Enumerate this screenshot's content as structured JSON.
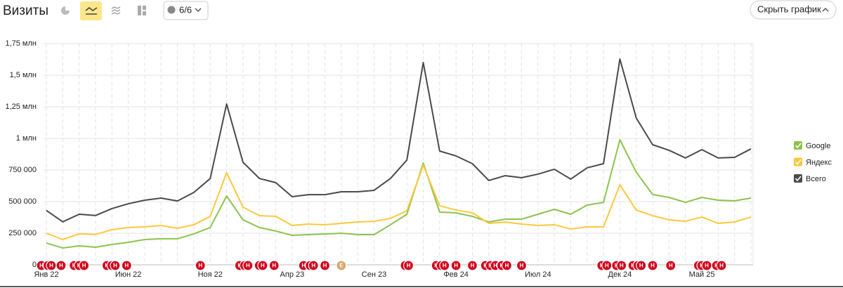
{
  "toolbar": {
    "counter": "6/6",
    "hide_button": "Скрыть график"
  },
  "chart_data": {
    "type": "line",
    "title": "Визиты",
    "categories": [
      "Янв 22",
      null,
      null,
      null,
      null,
      "Июн 22",
      null,
      null,
      null,
      null,
      "Ноя 22",
      null,
      null,
      null,
      null,
      "Апр 23",
      null,
      null,
      null,
      null,
      "Сен 23",
      null,
      null,
      null,
      null,
      "Фев 24",
      null,
      null,
      null,
      null,
      "Июл 24",
      null,
      null,
      null,
      null,
      "Дек 24",
      null,
      null,
      null,
      null,
      "Май 25",
      null,
      null,
      null
    ],
    "series": [
      {
        "name": "Google",
        "color": "#8cc34b",
        "values": [
          172000,
          133000,
          150000,
          139000,
          161000,
          178000,
          200000,
          206000,
          206000,
          245000,
          295000,
          544000,
          356000,
          295000,
          267000,
          233000,
          239000,
          244000,
          250000,
          239000,
          239000,
          317000,
          400000,
          806000,
          417000,
          411000,
          383000,
          339000,
          361000,
          361000,
          400000,
          439000,
          400000,
          472000,
          494000,
          989000,
          733000,
          556000,
          533000,
          494000,
          533000,
          511000,
          506000,
          528000
        ]
      },
      {
        "name": "Яндекс",
        "color": "#fdc83a",
        "values": [
          250000,
          200000,
          245000,
          240000,
          278000,
          295000,
          300000,
          311000,
          289000,
          317000,
          383000,
          728000,
          456000,
          389000,
          383000,
          311000,
          322000,
          317000,
          328000,
          339000,
          344000,
          367000,
          428000,
          789000,
          467000,
          433000,
          411000,
          328000,
          339000,
          322000,
          311000,
          317000,
          283000,
          300000,
          300000,
          633000,
          433000,
          389000,
          356000,
          344000,
          378000,
          328000,
          339000,
          378000
        ]
      },
      {
        "name": "Всего",
        "color": "#4a4a4a",
        "values": [
          430000,
          340000,
          400000,
          390000,
          445000,
          483000,
          511000,
          528000,
          505000,
          572000,
          683000,
          1272000,
          811000,
          683000,
          650000,
          539000,
          555000,
          555000,
          578000,
          578000,
          589000,
          683000,
          828000,
          1600000,
          900000,
          861000,
          800000,
          667000,
          705000,
          689000,
          717000,
          756000,
          678000,
          767000,
          800000,
          1628000,
          1161000,
          950000,
          906000,
          845000,
          911000,
          845000,
          850000,
          917000
        ]
      }
    ],
    "ylim": [
      0,
      1750000
    ],
    "yticks": [
      0,
      {
        "value": 250000,
        "label": "250 000"
      },
      {
        "value": 500000,
        "label": "500 000"
      },
      {
        "value": 750000,
        "label": "750 000"
      },
      {
        "value": 1000000,
        "label": "1 млн"
      },
      {
        "value": 1250000,
        "label": "1,25 млн"
      },
      {
        "value": 1500000,
        "label": "1,5 млн"
      },
      {
        "value": 1750000,
        "label": "1,75 млн"
      }
    ],
    "grid": true,
    "legend": "right",
    "annotations": [
      {
        "label": "Н",
        "x": -0.3,
        "color": "#d0021b"
      },
      {
        "label": "Н",
        "x": 0.1,
        "color": "#d0021b"
      },
      {
        "label": "Н",
        "x": 0.3,
        "color": "#d0021b"
      },
      {
        "label": "Н",
        "x": 0.9,
        "color": "#d0021b"
      },
      {
        "label": "Н",
        "x": 1.7,
        "color": "#d0021b"
      },
      {
        "label": "Н",
        "x": 2.0,
        "color": "#d0021b"
      },
      {
        "label": "Н",
        "x": 2.3,
        "color": "#d0021b"
      },
      {
        "label": "Н",
        "x": 3.7,
        "color": "#d0021b"
      },
      {
        "label": "Н",
        "x": 4.0,
        "color": "#d0021b"
      },
      {
        "label": "Н",
        "x": 4.2,
        "color": "#d0021b"
      },
      {
        "label": "Н",
        "x": 4.9,
        "color": "#d0021b"
      },
      {
        "label": "Н",
        "x": 9.4,
        "color": "#d0021b"
      },
      {
        "label": "Н",
        "x": 11.8,
        "color": "#d0021b"
      },
      {
        "label": "Н",
        "x": 12.1,
        "color": "#d0021b"
      },
      {
        "label": "Н",
        "x": 12.3,
        "color": "#d0021b"
      },
      {
        "label": "Н",
        "x": 13.0,
        "color": "#d0021b"
      },
      {
        "label": "Н",
        "x": 13.2,
        "color": "#d0021b"
      },
      {
        "label": "Н",
        "x": 13.9,
        "color": "#d0021b"
      },
      {
        "label": "Н",
        "x": 15.7,
        "color": "#d0021b"
      },
      {
        "label": "Н",
        "x": 16.1,
        "color": "#d0021b"
      },
      {
        "label": "Н",
        "x": 16.3,
        "color": "#d0021b"
      },
      {
        "label": "Н",
        "x": 17.0,
        "color": "#d0021b"
      },
      {
        "label": "Е",
        "x": 18.0,
        "color": "#d9a46b"
      },
      {
        "label": "Н",
        "x": 21.9,
        "color": "#d0021b"
      },
      {
        "label": "Н",
        "x": 22.1,
        "color": "#d0021b"
      },
      {
        "label": "Н",
        "x": 23.8,
        "color": "#d0021b"
      },
      {
        "label": "Н",
        "x": 24.1,
        "color": "#d0021b"
      },
      {
        "label": "Н",
        "x": 24.3,
        "color": "#d0021b"
      },
      {
        "label": "Н",
        "x": 25.0,
        "color": "#d0021b"
      },
      {
        "label": "Н",
        "x": 26.0,
        "color": "#d0021b"
      },
      {
        "label": "Н",
        "x": 26.8,
        "color": "#d0021b"
      },
      {
        "label": "Н",
        "x": 27.1,
        "color": "#d0021b"
      },
      {
        "label": "Н",
        "x": 27.4,
        "color": "#d0021b"
      },
      {
        "label": "Н",
        "x": 27.8,
        "color": "#d0021b"
      },
      {
        "label": "Н",
        "x": 28.1,
        "color": "#d0021b"
      },
      {
        "label": "Н",
        "x": 29.0,
        "color": "#d0021b"
      },
      {
        "label": "Н",
        "x": 33.9,
        "color": "#d0021b"
      },
      {
        "label": "Н",
        "x": 34.2,
        "color": "#d0021b"
      },
      {
        "label": "Н",
        "x": 34.8,
        "color": "#d0021b"
      },
      {
        "label": "Н",
        "x": 35.1,
        "color": "#d0021b"
      },
      {
        "label": "Н",
        "x": 35.8,
        "color": "#d0021b"
      },
      {
        "label": "Н",
        "x": 36.1,
        "color": "#d0021b"
      },
      {
        "label": "Н",
        "x": 36.3,
        "color": "#d0021b"
      },
      {
        "label": "Н",
        "x": 37.0,
        "color": "#d0021b"
      },
      {
        "label": "Н",
        "x": 38.1,
        "color": "#d0021b"
      },
      {
        "label": "Н",
        "x": 39.8,
        "color": "#d0021b"
      },
      {
        "label": "Н",
        "x": 40.0,
        "color": "#d0021b"
      },
      {
        "label": "Н",
        "x": 40.3,
        "color": "#d0021b"
      },
      {
        "label": "Н",
        "x": 40.9,
        "color": "#d0021b"
      },
      {
        "label": "Н",
        "x": 41.2,
        "color": "#d0021b"
      }
    ]
  }
}
